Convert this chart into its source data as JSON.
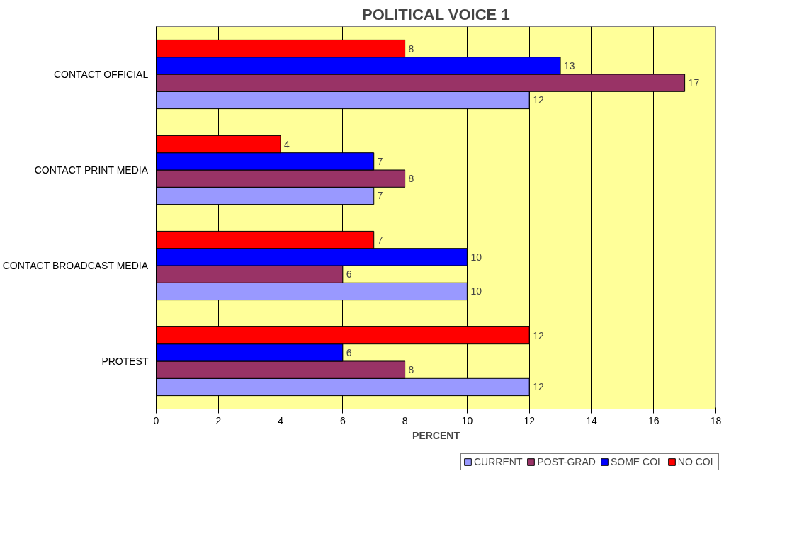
{
  "chart_data": {
    "type": "bar",
    "orientation": "horizontal",
    "title": "POLITICAL VOICE 1",
    "xlabel": "PERCENT",
    "categories": [
      "CONTACT OFFICIAL",
      "CONTACT PRINT MEDIA",
      "CONTACT BROADCAST MEDIA",
      "PROTEST"
    ],
    "series": [
      {
        "name": "CURRENT",
        "color": "#9999ff",
        "values": [
          12,
          7,
          10,
          12
        ]
      },
      {
        "name": "POST-GRAD",
        "color": "#993366",
        "values": [
          17,
          8,
          6,
          8
        ]
      },
      {
        "name": "SOME COL",
        "color": "#0000ff",
        "values": [
          13,
          7,
          10,
          6
        ]
      },
      {
        "name": "NO COL",
        "color": "#ff0000",
        "values": [
          8,
          4,
          7,
          12
        ]
      }
    ],
    "xlim": [
      0,
      18
    ],
    "xticks": [
      0,
      2,
      4,
      6,
      8,
      10,
      12,
      14,
      16,
      18
    ],
    "grid": "x",
    "legend": "bottom",
    "data_labels": true
  }
}
